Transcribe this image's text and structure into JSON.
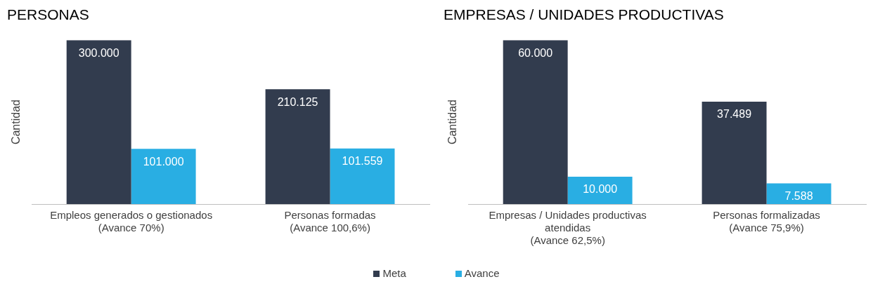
{
  "chart_data": [
    {
      "type": "bar",
      "title": "PERSONAS",
      "ylabel": "Cantidad",
      "categories": [
        "Empleos generados o gestionados\n(Avance 70%)",
        "Personas formadas\n(Avance 100,6%)"
      ],
      "series": [
        {
          "name": "Meta",
          "color": "#323c4e",
          "values": [
            300000,
            210125
          ],
          "value_labels": [
            "300.000",
            "210.125"
          ]
        },
        {
          "name": "Avance",
          "color": "#29aee3",
          "values": [
            101000,
            101559
          ],
          "value_labels": [
            "101.000",
            "101.559"
          ]
        }
      ],
      "legend": "bottom",
      "tick_labels": "x",
      "grid": false
    },
    {
      "type": "bar",
      "title": "EMPRESAS / UNIDADES PRODUCTIVAS",
      "ylabel": "Cantidad",
      "categories": [
        "Empresas / Unidades productivas\natendidas\n(Avance 62,5%)",
        "Personas formalizadas\n(Avance 75,9%)"
      ],
      "series": [
        {
          "color": "#323c4e",
          "values": [
            60000,
            37489
          ],
          "value_labels": [
            "60.000",
            "37.489"
          ]
        },
        {
          "color": "#29aee3",
          "values": [
            10000,
            7588
          ],
          "value_labels": [
            "10.000",
            "7.588"
          ]
        }
      ],
      "tick_labels": "x",
      "grid": false
    }
  ]
}
